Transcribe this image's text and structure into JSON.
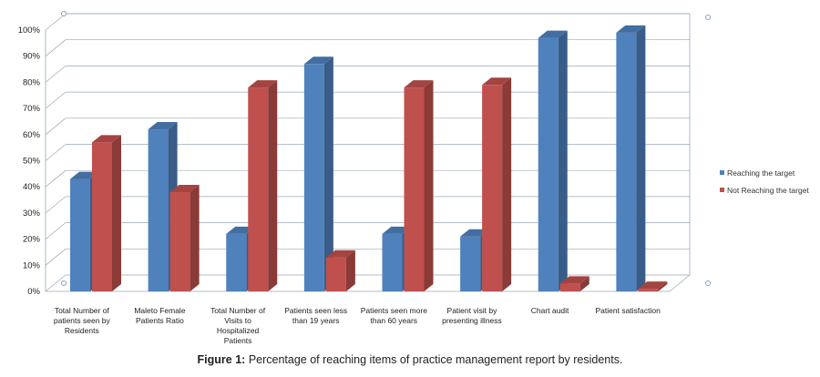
{
  "caption": {
    "label": "Figure 1:",
    "text": " Percentage of reaching items of practice management report by residents."
  },
  "chart_data": {
    "type": "bar",
    "style": "3d-clustered",
    "categories": [
      [
        "Total Number of",
        "patients seen by",
        "Residents"
      ],
      [
        "Maleto Female",
        "Patients Ratio"
      ],
      [
        "Total Number of",
        "Visits to",
        "Hospitalized",
        "Patients"
      ],
      [
        "Patients seen less",
        "than 19 years"
      ],
      [
        "Patients seen more",
        "than 60 years"
      ],
      [
        "Patient visit by",
        "presenting illness"
      ],
      [
        "Chart audit"
      ],
      [
        "Patient satisfaction"
      ]
    ],
    "series": [
      {
        "name": "Reaching the target",
        "color": "#4f81bd",
        "values": [
          43,
          62,
          22,
          87,
          22,
          21,
          97,
          99
        ]
      },
      {
        "name": "Not Reaching the target",
        "color": "#c0504d",
        "values": [
          57,
          38,
          78,
          13,
          78,
          79,
          3,
          1
        ]
      }
    ],
    "ylim": [
      0,
      100
    ],
    "yticks": [
      "0%",
      "10%",
      "20%",
      "30%",
      "40%",
      "50%",
      "60%",
      "70%",
      "80%",
      "90%",
      "100%"
    ],
    "grid": true,
    "legend_position": "right"
  }
}
